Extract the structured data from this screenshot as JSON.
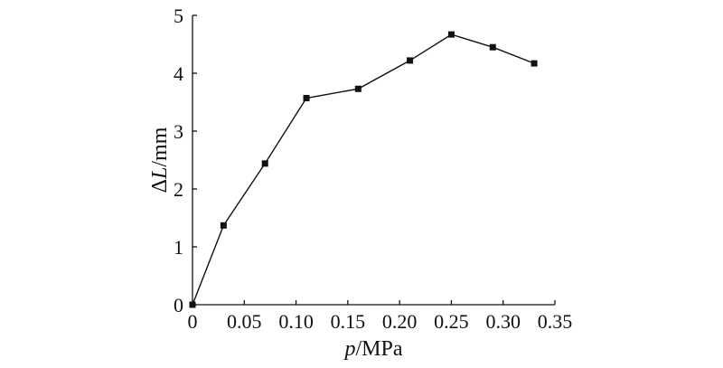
{
  "chart_data": {
    "type": "line",
    "title": "",
    "xlabel": {
      "var": "p",
      "unit": "/MPa"
    },
    "ylabel": {
      "prefix": "Δ",
      "var": "L",
      "unit": "/mm"
    },
    "xlim": [
      0,
      0.35
    ],
    "ylim": [
      0,
      5
    ],
    "xticks": [
      0,
      0.05,
      0.1,
      0.15,
      0.2,
      0.25,
      0.3,
      0.35
    ],
    "xtick_labels": [
      "0",
      "0.05",
      "0.10",
      "0.15",
      "0.20",
      "0.25",
      "0.30",
      "0.35"
    ],
    "yticks": [
      0,
      1,
      2,
      3,
      4,
      5
    ],
    "ytick_labels": [
      "0",
      "1",
      "2",
      "3",
      "4",
      "5"
    ],
    "grid": false,
    "series": [
      {
        "marker": "square",
        "color": "#111111",
        "x": [
          0,
          0.03,
          0.07,
          0.11,
          0.16,
          0.21,
          0.25,
          0.29,
          0.33
        ],
        "y": [
          0,
          1.37,
          2.44,
          3.57,
          3.73,
          4.22,
          4.67,
          4.45,
          4.17
        ]
      }
    ]
  }
}
